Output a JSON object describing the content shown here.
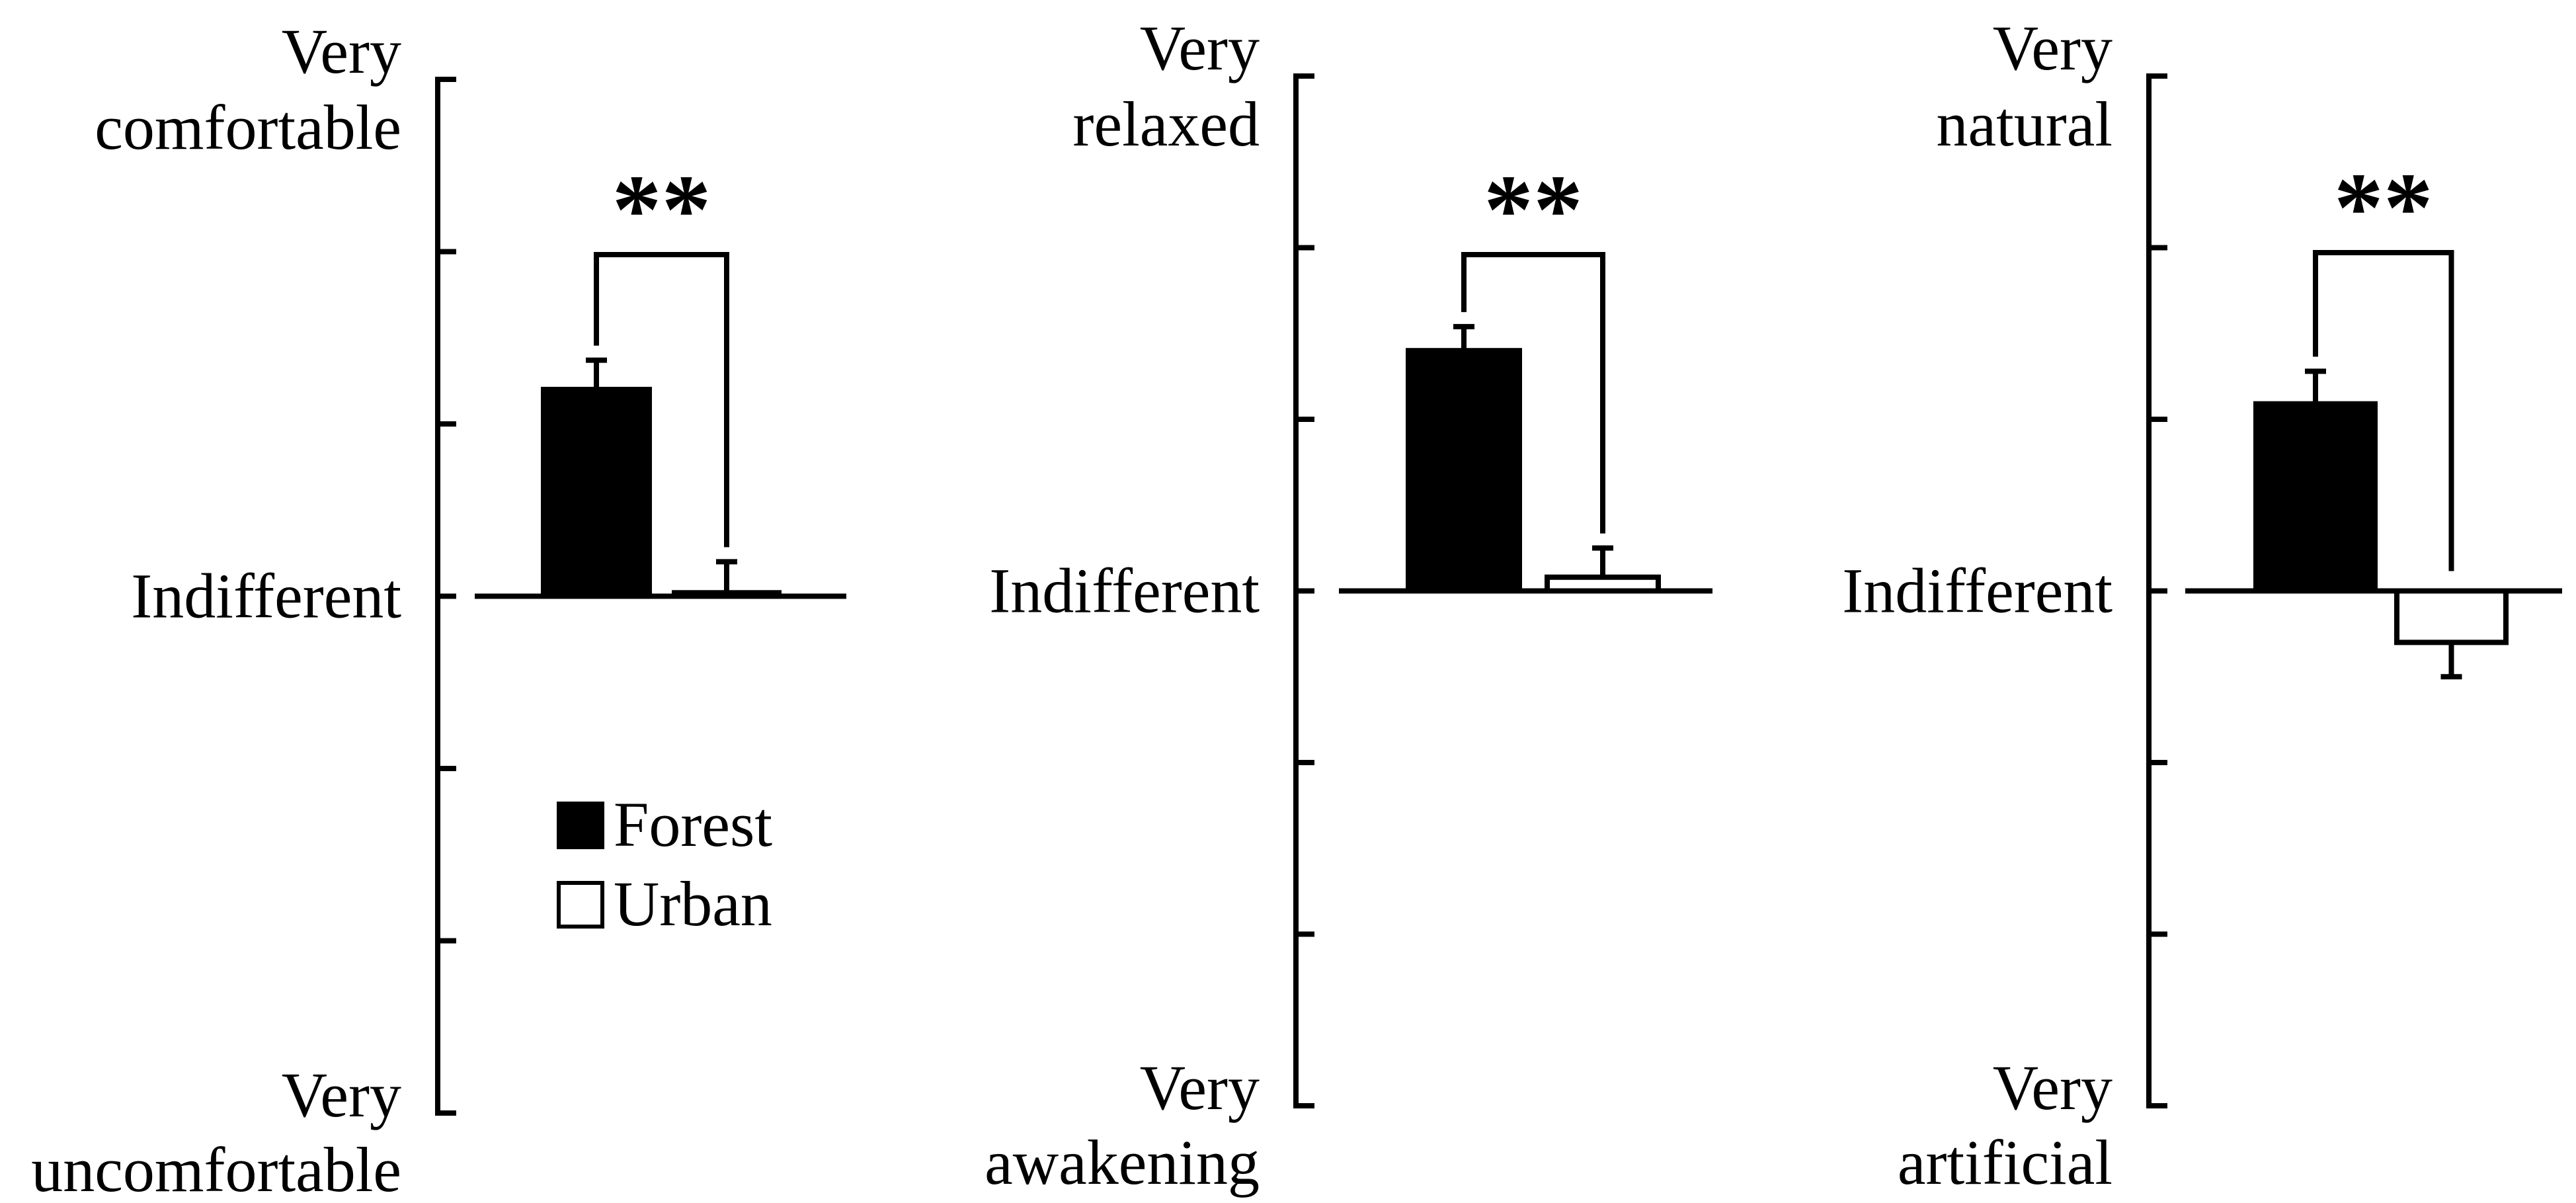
{
  "chart_data": [
    {
      "type": "bar",
      "categories": [
        "Forest",
        "Urban"
      ],
      "values": [
        1.2,
        0.02
      ],
      "errors": [
        0.17,
        0.18
      ],
      "ylim": [
        -3,
        3
      ],
      "y_tick_step": 1,
      "y_labels": {
        "top": [
          "Very",
          "comfortable"
        ],
        "middle": "Indifferent",
        "bottom": [
          "Very",
          "uncomfortable"
        ]
      },
      "significance": "**",
      "legend": [
        {
          "name": "Forest",
          "fill": "#000000"
        },
        {
          "name": "Urban",
          "fill": "#ffffff"
        }
      ]
    },
    {
      "type": "bar",
      "categories": [
        "Forest",
        "Urban"
      ],
      "values": [
        1.4,
        0.08
      ],
      "errors": [
        0.14,
        0.17
      ],
      "ylim": [
        -3,
        3
      ],
      "y_tick_step": 1,
      "y_labels": {
        "top": [
          "Very",
          "relaxed"
        ],
        "middle": "Indifferent",
        "bottom": [
          "Very",
          "awakening"
        ]
      },
      "significance": "**"
    },
    {
      "type": "bar",
      "categories": [
        "Forest",
        "Urban"
      ],
      "values": [
        1.09,
        -0.3
      ],
      "errors": [
        0.19,
        0.2
      ],
      "ylim": [
        -3,
        3
      ],
      "y_tick_step": 1,
      "y_labels": {
        "top": [
          "Very",
          "natural"
        ],
        "middle": "Indifferent",
        "bottom": [
          "Very",
          "artificial"
        ]
      },
      "significance": "**"
    }
  ],
  "colors": {
    "forest": "#000000",
    "urban": "#ffffff",
    "stroke": "#000000"
  }
}
